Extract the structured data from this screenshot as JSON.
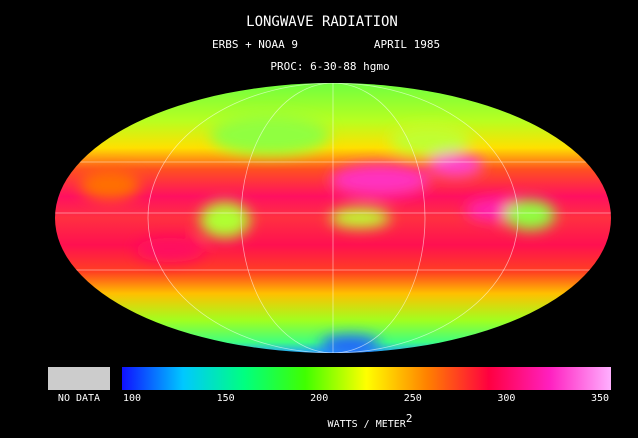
{
  "header": {
    "title": "LONGWAVE RADIATION",
    "satellites": "ERBS + NOAA 9",
    "date": "APRIL 1985",
    "processed": "PROC: 6-30-88 hgmo"
  },
  "legend": {
    "no_data": "NO DATA",
    "range": [
      100,
      350
    ],
    "ticks": [
      100,
      150,
      200,
      250,
      300,
      350
    ],
    "colors": [
      "#1010ff",
      "#00c8ff",
      "#00ff80",
      "#40ff00",
      "#ffff00",
      "#ff8000",
      "#ff0040",
      "#ff20c0",
      "#ffb0ff"
    ],
    "unit": "WATTS / METER",
    "unit_power": "2"
  }
}
